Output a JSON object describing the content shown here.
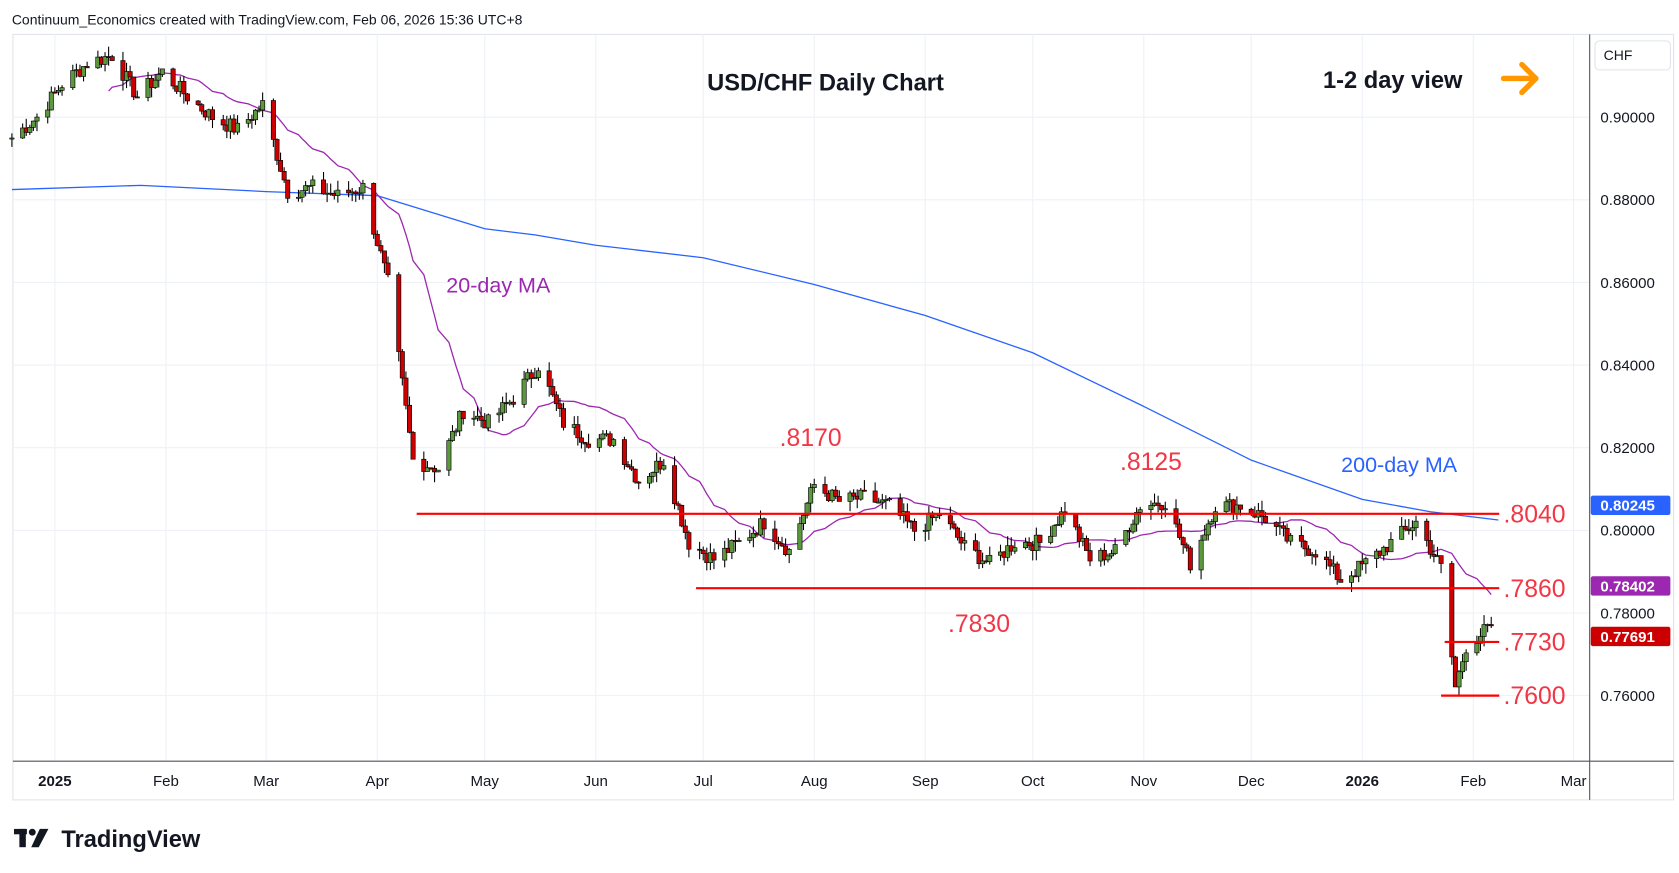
{
  "header": {
    "attribution": "Continuum_Economics created with TradingView.com, Feb 06, 2026 15:36 UTC+8"
  },
  "brand": {
    "logo_text": "TradingView"
  },
  "currency_button": "CHF",
  "colors": {
    "up": "#5b9a3c",
    "down": "#cc0000",
    "ma20": "#9c27b0",
    "ma200": "#2962ff",
    "level": "#ff0000",
    "arrow": "#ff9800"
  },
  "chart_data": {
    "type": "candlestick",
    "title": "USD/CHF Daily Chart",
    "view_label": "1-2 day view",
    "view_icon": "arrow-right-icon",
    "y_ticks": [
      "0.90000",
      "0.88000",
      "0.86000",
      "0.84000",
      "0.82000",
      "0.80000",
      "0.78000",
      "0.76000"
    ],
    "y_tick_values": [
      0.9,
      0.88,
      0.86,
      0.84,
      0.82,
      0.8,
      0.78,
      0.76
    ],
    "ylim": [
      0.744,
      0.924
    ],
    "x_ticks": [
      {
        "label": "2025",
        "date": "2025-01-01",
        "bold": true
      },
      {
        "label": "Feb",
        "date": "2025-02-01"
      },
      {
        "label": "Mar",
        "date": "2025-03-01"
      },
      {
        "label": "Apr",
        "date": "2025-04-01"
      },
      {
        "label": "May",
        "date": "2025-05-01"
      },
      {
        "label": "Jun",
        "date": "2025-06-01"
      },
      {
        "label": "Jul",
        "date": "2025-07-01"
      },
      {
        "label": "Aug",
        "date": "2025-08-01"
      },
      {
        "label": "Sep",
        "date": "2025-09-01"
      },
      {
        "label": "Oct",
        "date": "2025-10-01"
      },
      {
        "label": "Nov",
        "date": "2025-11-01"
      },
      {
        "label": "Dec",
        "date": "2025-12-01"
      },
      {
        "label": "2026",
        "date": "2026-01-01",
        "bold": true
      },
      {
        "label": "Feb",
        "date": "2026-02-01"
      },
      {
        "label": "Mar",
        "date": "2026-03-01"
      }
    ],
    "closes_approx": [
      [
        "2024-12-20",
        0.895
      ],
      [
        "2024-12-27",
        0.9
      ],
      [
        "2025-01-03",
        0.908
      ],
      [
        "2025-01-10",
        0.913
      ],
      [
        "2025-01-17",
        0.915
      ],
      [
        "2025-01-24",
        0.905
      ],
      [
        "2025-01-31",
        0.911
      ],
      [
        "2025-02-07",
        0.905
      ],
      [
        "2025-02-14",
        0.9
      ],
      [
        "2025-02-21",
        0.897
      ],
      [
        "2025-02-28",
        0.903
      ],
      [
        "2025-03-07",
        0.882
      ],
      [
        "2025-03-14",
        0.883
      ],
      [
        "2025-03-21",
        0.881
      ],
      [
        "2025-03-28",
        0.883
      ],
      [
        "2025-04-04",
        0.86
      ],
      [
        "2025-04-11",
        0.817
      ],
      [
        "2025-04-18",
        0.815
      ],
      [
        "2025-04-25",
        0.829
      ],
      [
        "2025-05-02",
        0.826
      ],
      [
        "2025-05-09",
        0.832
      ],
      [
        "2025-05-16",
        0.84
      ],
      [
        "2025-05-23",
        0.826
      ],
      [
        "2025-05-30",
        0.822
      ],
      [
        "2025-06-06",
        0.822
      ],
      [
        "2025-06-13",
        0.812
      ],
      [
        "2025-06-20",
        0.817
      ],
      [
        "2025-06-27",
        0.797
      ],
      [
        "2025-07-04",
        0.793
      ],
      [
        "2025-07-11",
        0.797
      ],
      [
        "2025-07-18",
        0.802
      ],
      [
        "2025-07-25",
        0.795
      ],
      [
        "2025-08-01",
        0.811
      ],
      [
        "2025-08-08",
        0.807
      ],
      [
        "2025-08-15",
        0.808
      ],
      [
        "2025-08-22",
        0.806
      ],
      [
        "2025-08-29",
        0.8
      ],
      [
        "2025-09-05",
        0.804
      ],
      [
        "2025-09-12",
        0.796
      ],
      [
        "2025-09-19",
        0.792
      ],
      [
        "2025-09-26",
        0.797
      ],
      [
        "2025-10-03",
        0.797
      ],
      [
        "2025-10-10",
        0.805
      ],
      [
        "2025-10-17",
        0.793
      ],
      [
        "2025-10-24",
        0.795
      ],
      [
        "2025-10-31",
        0.806
      ],
      [
        "2025-11-07",
        0.807
      ],
      [
        "2025-11-14",
        0.792
      ],
      [
        "2025-11-21",
        0.806
      ],
      [
        "2025-11-28",
        0.806
      ],
      [
        "2025-12-05",
        0.803
      ],
      [
        "2025-12-12",
        0.797
      ],
      [
        "2025-12-19",
        0.795
      ],
      [
        "2025-12-26",
        0.788
      ],
      [
        "2026-01-02",
        0.792
      ],
      [
        "2026-01-09",
        0.797
      ],
      [
        "2026-01-16",
        0.802
      ],
      [
        "2026-01-23",
        0.791
      ],
      [
        "2026-01-27",
        0.762
      ],
      [
        "2026-01-30",
        0.772
      ],
      [
        "2026-02-06",
        0.7769
      ]
    ],
    "ma200_approx": [
      [
        "2024-12-20",
        0.8825
      ],
      [
        "2025-01-25",
        0.8835
      ],
      [
        "2025-03-01",
        0.882
      ],
      [
        "2025-04-01",
        0.881
      ],
      [
        "2025-05-01",
        0.873
      ],
      [
        "2025-05-15",
        0.8715
      ],
      [
        "2025-06-01",
        0.869
      ],
      [
        "2025-07-01",
        0.866
      ],
      [
        "2025-08-01",
        0.8595
      ],
      [
        "2025-09-01",
        0.852
      ],
      [
        "2025-10-01",
        0.843
      ],
      [
        "2025-11-01",
        0.83
      ],
      [
        "2025-12-01",
        0.817
      ],
      [
        "2026-01-01",
        0.8075
      ],
      [
        "2026-01-20",
        0.8045
      ],
      [
        "2026-02-08",
        0.8025
      ]
    ],
    "series_labels": {
      "ma20": "20-day MA",
      "ma200": "200-day MA"
    },
    "levels": [
      {
        "label": ".8040",
        "value": 0.804,
        "from": "2025-04-12",
        "to": "2026-02-20"
      },
      {
        "label": ".7860",
        "value": 0.786,
        "from": "2025-06-29",
        "to": "2026-02-20"
      },
      {
        "label": ".7730",
        "value": 0.773,
        "from": "2026-01-24",
        "to": "2026-02-20"
      },
      {
        "label": ".7600",
        "value": 0.76,
        "from": "2026-01-23",
        "to": "2026-02-20"
      }
    ],
    "annotations": [
      {
        "label": ".8170",
        "value": 0.817,
        "date": "2025-07-31"
      },
      {
        "label": ".8125",
        "value": 0.8125,
        "date": "2025-11-03"
      },
      {
        "label": ".7830",
        "value": 0.783,
        "date": "2025-09-16"
      }
    ],
    "price_tags": [
      {
        "label": "0.80245",
        "value": 0.80245,
        "color": "#2962ff"
      },
      {
        "label": "0.78402",
        "value": 0.78402,
        "color": "#9c27b0"
      },
      {
        "label": "0.77691",
        "value": 0.77691,
        "color": "#cc0000"
      }
    ]
  }
}
